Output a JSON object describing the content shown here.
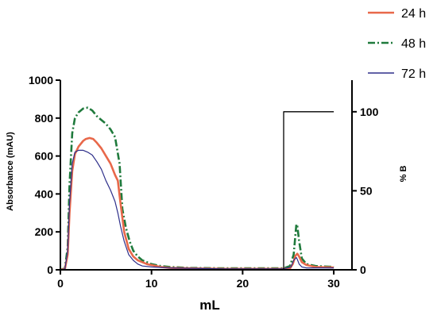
{
  "chart_data": {
    "type": "line",
    "xlabel": "mL",
    "ylabel": "Absorbance (mAU)",
    "y2label": "% B",
    "xlim": [
      0,
      32
    ],
    "ylim": [
      0,
      1000
    ],
    "y2lim": [
      0,
      120
    ],
    "xticks": [
      "0",
      "10",
      "20",
      "30"
    ],
    "xtick_values": [
      0,
      10,
      20,
      30
    ],
    "yticks": [
      "0",
      "200",
      "400",
      "600",
      "800",
      "1000"
    ],
    "ytick_values": [
      0,
      200,
      400,
      600,
      800,
      1000
    ],
    "y2ticks": [
      "0",
      "50",
      "100"
    ],
    "y2tick_values": [
      0,
      50,
      100
    ],
    "legend_position": "top-right",
    "series": [
      {
        "name": "24 h",
        "axis": "left",
        "color": "#e8684a",
        "style": "solid",
        "x": [
          0,
          0.5,
          0.8,
          1.0,
          1.3,
          1.6,
          2.0,
          2.5,
          2.8,
          3.2,
          3.6,
          4.0,
          4.5,
          5.0,
          5.5,
          6.0,
          6.3,
          6.6,
          7.0,
          7.5,
          8.0,
          8.5,
          9.0,
          9.5,
          10.0,
          11.0,
          12.0,
          14.0,
          18.0,
          22.0,
          24.5,
          25.2,
          25.5,
          25.8,
          26.0,
          26.2,
          26.5,
          27.0,
          28.0,
          30.0
        ],
        "values": [
          0,
          5,
          80,
          300,
          520,
          610,
          650,
          680,
          690,
          695,
          690,
          670,
          640,
          600,
          560,
          500,
          470,
          350,
          200,
          110,
          70,
          50,
          40,
          30,
          25,
          15,
          10,
          8,
          5,
          5,
          5,
          8,
          30,
          75,
          85,
          70,
          40,
          25,
          15,
          12
        ]
      },
      {
        "name": "48 h",
        "axis": "left",
        "color": "#1f7a3c",
        "style": "dashdot",
        "x": [
          0,
          0.5,
          0.8,
          1.0,
          1.3,
          1.6,
          2.0,
          2.5,
          3.0,
          3.5,
          4.0,
          4.5,
          5.0,
          5.5,
          6.0,
          6.5,
          6.8,
          7.2,
          7.6,
          8.0,
          8.5,
          9.0,
          9.5,
          10.0,
          11.0,
          12.0,
          14.0,
          18.0,
          22.0,
          24.5,
          25.2,
          25.6,
          25.9,
          26.0,
          26.2,
          26.5,
          27.0,
          28.0,
          30.0
        ],
        "values": [
          0,
          8,
          120,
          450,
          720,
          800,
          830,
          850,
          855,
          840,
          810,
          790,
          770,
          740,
          700,
          560,
          320,
          220,
          150,
          100,
          70,
          50,
          40,
          30,
          20,
          15,
          10,
          8,
          8,
          8,
          20,
          80,
          240,
          230,
          150,
          60,
          30,
          20,
          15
        ]
      },
      {
        "name": "72 h",
        "axis": "left",
        "color": "#2e2f8a",
        "style": "solid",
        "x": [
          0,
          0.5,
          0.8,
          1.0,
          1.3,
          1.6,
          2.0,
          2.5,
          3.0,
          3.5,
          4.0,
          4.5,
          5.0,
          5.5,
          6.0,
          6.3,
          6.6,
          7.0,
          7.5,
          8.0,
          8.5,
          9.0,
          10.0,
          12.0,
          14.0,
          18.0,
          22.0,
          24.5,
          25.3,
          25.6,
          25.9,
          26.0,
          26.2,
          26.5,
          27.0,
          28.0,
          30.0
        ],
        "values": [
          0,
          5,
          100,
          350,
          560,
          620,
          630,
          630,
          620,
          605,
          570,
          530,
          470,
          420,
          360,
          300,
          230,
          150,
          80,
          50,
          30,
          20,
          15,
          10,
          8,
          5,
          5,
          5,
          15,
          50,
          65,
          55,
          30,
          15,
          10,
          10,
          10
        ]
      },
      {
        "name": "",
        "axis": "right",
        "color": "#000000",
        "style": "solid",
        "x": [
          0,
          24.5,
          24.5,
          30
        ],
        "values": [
          0,
          0,
          100,
          100
        ]
      }
    ]
  }
}
